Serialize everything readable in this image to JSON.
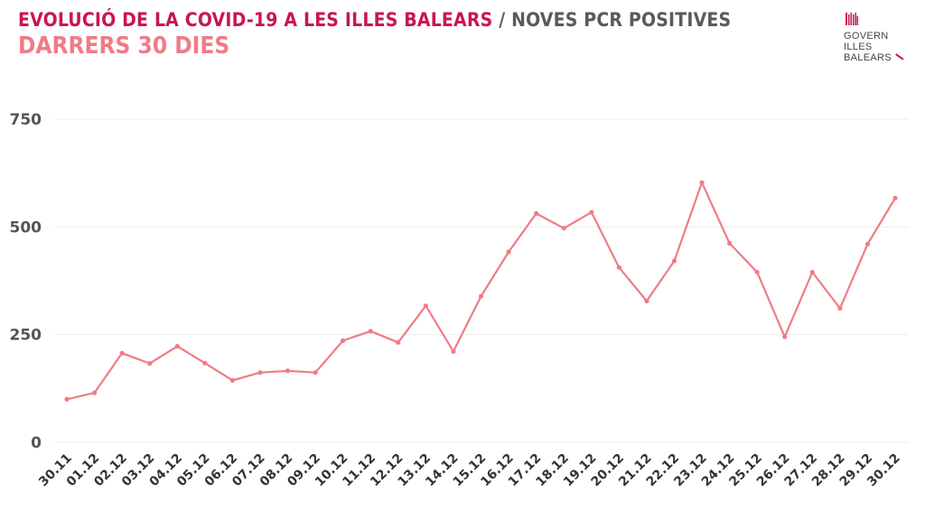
{
  "title": {
    "main": "EVOLUCIÓ DE LA COVID-19 A LES ILLES BALEARS",
    "separator": " / ",
    "secondary": "NOVES PCR POSITIVES",
    "subtitle": "DARRERS 30 DIES"
  },
  "logo": {
    "line1": "GOVERN",
    "line2": "ILLES",
    "line3": "BALEARS"
  },
  "colors": {
    "title_main": "#c8174f",
    "title_secondary": "#5a5a5a",
    "subtitle": "#f07b85",
    "series": "#f07b85",
    "grid": "#eeeeee"
  },
  "chart_data": {
    "type": "line",
    "title": "EVOLUCIÓ DE LA COVID-19 A LES ILLES BALEARS / NOVES PCR POSITIVES",
    "subtitle": "DARRERS 30 DIES",
    "xlabel": "",
    "ylabel": "",
    "ylim": [
      0,
      750
    ],
    "yticks": [
      0,
      250,
      500,
      750
    ],
    "grid": true,
    "categories": [
      "30.11",
      "01.12",
      "02.12",
      "03.12",
      "04.12",
      "05.12",
      "06.12",
      "07.12",
      "08.12",
      "09.12",
      "10.12",
      "11.12",
      "12.12",
      "13.12",
      "14.12",
      "15.12",
      "16.12",
      "17.12",
      "18.12",
      "19.12",
      "20.12",
      "21.12",
      "22.12",
      "23.12",
      "24.12",
      "25.12",
      "26.12",
      "27.12",
      "28.12",
      "29.12",
      "30.12"
    ],
    "series": [
      {
        "values": [
          100,
          115,
          207,
          183,
          223,
          184,
          144,
          162,
          166,
          162,
          236,
          258,
          232,
          317,
          211,
          339,
          442,
          531,
          497,
          534,
          406,
          328,
          421,
          603,
          462,
          395,
          245,
          395,
          311,
          460,
          567
        ]
      }
    ]
  }
}
